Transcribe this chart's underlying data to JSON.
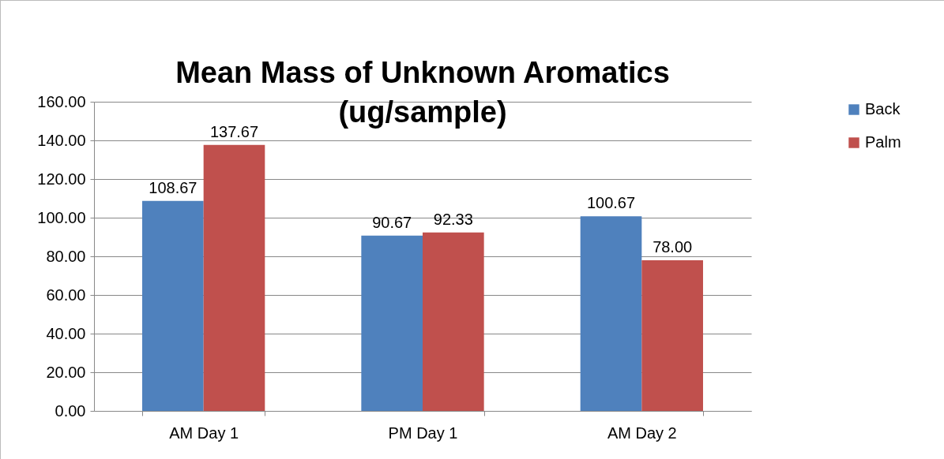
{
  "chart_data": {
    "type": "bar",
    "title": "Mean Mass of Unknown Aromatics (ug/sample)",
    "categories": [
      "AM Day 1",
      "PM Day 1",
      "AM Day 2"
    ],
    "series": [
      {
        "name": "Back",
        "color": "#4f81bd",
        "values": [
          108.67,
          90.67,
          100.67
        ],
        "value_labels": [
          "108.67",
          "90.67",
          "100.67"
        ]
      },
      {
        "name": "Palm",
        "color": "#c0504d",
        "values": [
          137.67,
          92.33,
          78.0
        ],
        "value_labels": [
          "137.67",
          "92.33",
          "78.00"
        ]
      }
    ],
    "ylim": [
      0,
      160
    ],
    "yticks": [
      {
        "value": 0,
        "label": "0.00"
      },
      {
        "value": 20,
        "label": "20.00"
      },
      {
        "value": 40,
        "label": "40.00"
      },
      {
        "value": 60,
        "label": "60.00"
      },
      {
        "value": 80,
        "label": "80.00"
      },
      {
        "value": 100,
        "label": "100.00"
      },
      {
        "value": 120,
        "label": "120.00"
      },
      {
        "value": 140,
        "label": "140.00"
      },
      {
        "value": 160,
        "label": "160.00"
      }
    ],
    "grid": "y",
    "legend": "right"
  }
}
